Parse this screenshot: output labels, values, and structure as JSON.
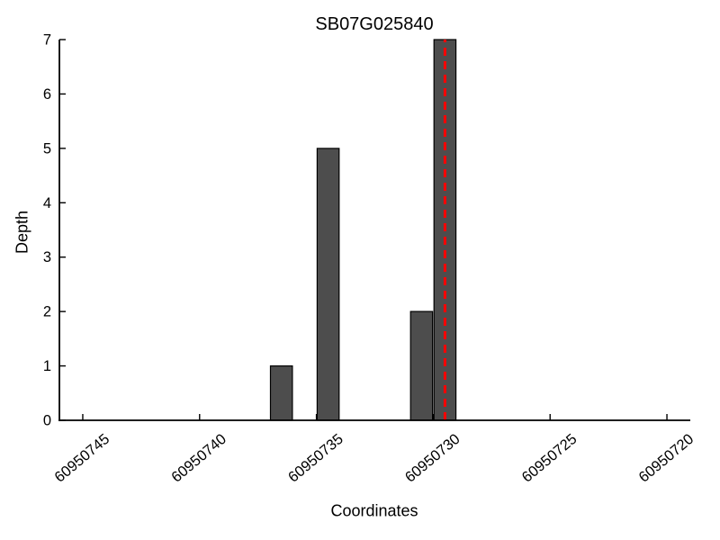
{
  "figure": {
    "title": "SB07G025840",
    "xlabel": "Coordinates",
    "ylabel": "Depth"
  },
  "chart_data": {
    "type": "bar",
    "title": "SB07G025840",
    "xlabel": "Coordinates",
    "ylabel": "Depth",
    "x_axis_reversed": true,
    "xlim": [
      60950746,
      60950719
    ],
    "ylim": [
      0,
      7
    ],
    "grid": false,
    "legend": "none",
    "xticks": [
      {
        "value": 60950745,
        "label": "60950745"
      },
      {
        "value": 60950740,
        "label": "60950740"
      },
      {
        "value": 60950735,
        "label": "60950735"
      },
      {
        "value": 60950730,
        "label": "60950730"
      },
      {
        "value": 60950725,
        "label": "60950725"
      },
      {
        "value": 60950720,
        "label": "60950720"
      }
    ],
    "yticks": [
      {
        "value": 0,
        "label": "0"
      },
      {
        "value": 1,
        "label": "1"
      },
      {
        "value": 2,
        "label": "2"
      },
      {
        "value": 3,
        "label": "3"
      },
      {
        "value": 4,
        "label": "4"
      },
      {
        "value": 5,
        "label": "5"
      },
      {
        "value": 6,
        "label": "6"
      },
      {
        "value": 7,
        "label": "7"
      }
    ],
    "bar_width": 1,
    "bars": [
      {
        "x_center": 60950736.5,
        "depth": 1
      },
      {
        "x_center": 60950734.5,
        "depth": 5
      },
      {
        "x_center": 60950730.5,
        "depth": 2
      },
      {
        "x_center": 60950729.5,
        "depth": 7
      }
    ],
    "marker_line": {
      "x": 60950729.5,
      "orientation": "vertical",
      "style": "dashed",
      "color": "#ff0000",
      "y_from": 0,
      "y_to": 7
    },
    "colors": {
      "bar_fill": "#4d4d4d",
      "bar_edge": "#000000",
      "axis": "#000000",
      "background": "#ffffff"
    }
  }
}
